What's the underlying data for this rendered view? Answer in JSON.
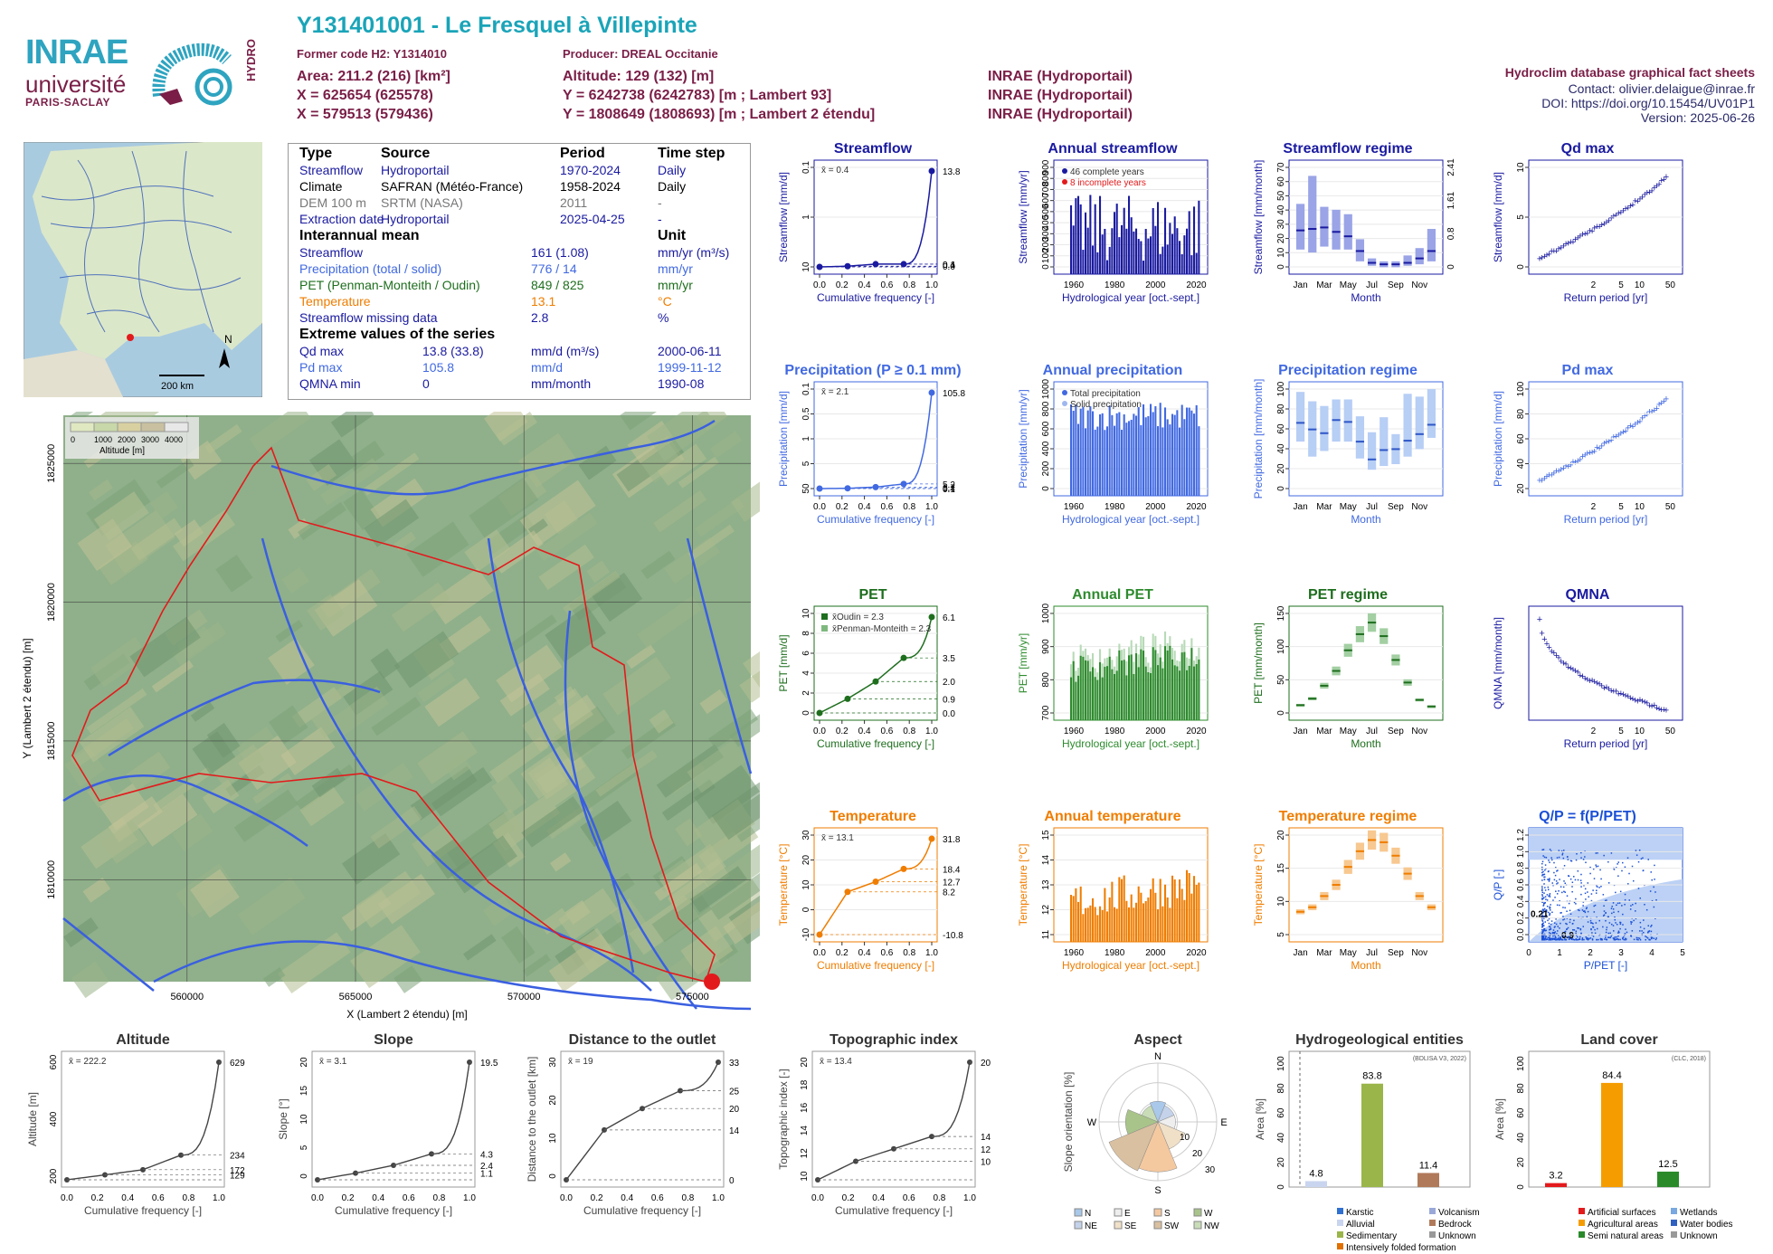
{
  "header": {
    "title": "Y131401001 - Le Fresquel à Villepinte",
    "former_code": "Former code H2: Y1314010",
    "producer": "Producer: DREAL Occitanie",
    "area": "Area: 211.2 (216) [km²]",
    "x_l93": "X = 625654 (625578)",
    "x_l2": "X = 579513 (579436)",
    "altitude": "Altitude: 129 (132) [m]",
    "y_l93": "Y = 6242738 (6242783) [m ; Lambert 93]",
    "y_l2": "Y = 1808649 (1808693) [m ; Lambert 2 étendu]",
    "src1": "INRAE (Hydroportail)",
    "src2": "INRAE (Hydroportail)",
    "src3": "INRAE (Hydroportail)",
    "db_title": "Hydroclim database graphical fact sheets",
    "contact": "Contact: olivier.delaigue@inrae.fr",
    "doi": "DOI: https://doi.org/10.15454/UV01P1",
    "version": "Version: 2025-06-26"
  },
  "logos": {
    "inrae": "INRAE",
    "universite": "université",
    "paris_saclay": "PARIS-SACLAY",
    "hydro": "HYDRO"
  },
  "minimap": {
    "north": "N",
    "scale": "200 km"
  },
  "table": {
    "head": [
      "Type",
      "Source",
      "Period",
      "Time step"
    ],
    "rows": [
      {
        "type": "Streamflow",
        "source": "Hydroportail",
        "period": "1970-2024",
        "step": "Daily",
        "color": "#1a1aa0"
      },
      {
        "type": "Climate",
        "source": "SAFRAN (Météo-France)",
        "period": "1958-2024",
        "step": "Daily",
        "color": "#000000"
      },
      {
        "type": "DEM 100 m",
        "source": "SRTM (NASA)",
        "period": "2011",
        "step": "-",
        "color": "#777777"
      },
      {
        "type": "Extraction date",
        "source": "Hydroportail",
        "period": "2025-04-25",
        "step": "-",
        "color": "#1a1aa0"
      }
    ],
    "interannual_title": "Interannual mean",
    "unit_title": "Unit",
    "means": [
      {
        "name": "Streamflow",
        "value": "161 (1.08)",
        "unit": "mm/yr (m³/s)",
        "color": "#1a1aa0"
      },
      {
        "name": "Precipitation (total / solid)",
        "value": "776 / 14",
        "unit": "mm/yr",
        "color": "#4169e1"
      },
      {
        "name": "PET (Penman-Monteith / Oudin)",
        "value": "849 / 825",
        "unit": "mm/yr",
        "color": "#1e6e1e"
      },
      {
        "name": "Temperature",
        "value": "13.1",
        "unit": "°C",
        "color": "#ef7d00"
      },
      {
        "name": "Streamflow missing data",
        "value": "2.8",
        "unit": "%",
        "color": "#1a1aa0"
      }
    ],
    "extreme_title": "Extreme values of the series",
    "extremes": [
      {
        "name": "Qd max",
        "value": "13.8 (33.8)",
        "unit": "mm/d (m³/s)",
        "date": "2000-06-11",
        "color": "#1a1aa0"
      },
      {
        "name": "Pd max",
        "value": "105.8",
        "unit": "mm/d",
        "date": "1999-11-12",
        "color": "#4169e1"
      },
      {
        "name": "QMNA min",
        "value": "0",
        "unit": "mm/month",
        "date": "1990-08",
        "color": "#1a1aa0"
      }
    ]
  },
  "map": {
    "legend_title": "Altitude [m]",
    "legend_ticks": [
      "0",
      "1000",
      "2000",
      "3000",
      "4000"
    ],
    "xlabel": "X (Lambert 2 étendu) [m]",
    "ylabel": "Y (Lambert 2 étendu) [m]",
    "xticks": [
      "560000",
      "565000",
      "570000",
      "575000",
      "580000"
    ],
    "yticks": [
      "1825000",
      "1820000",
      "1815000",
      "1810000"
    ]
  },
  "chart_data": [
    {
      "id": "streamflow",
      "type": "line",
      "title": "Streamflow",
      "xlabel": "Cumulative frequency [-]",
      "ylabel": "Streamflow [mm/d]",
      "color": "#1a1aa0",
      "mean_label": "x̄ = 0.4",
      "right_ticks": [
        "13.8",
        "0.4",
        "0.1",
        "0.0"
      ],
      "left_ticks": [
        "10",
        "1",
        "0.1"
      ],
      "x": [
        0,
        0.25,
        0.5,
        0.75,
        1.0
      ],
      "y": [
        0.0,
        0.1,
        0.4,
        0.4,
        13.8
      ]
    },
    {
      "id": "annual_streamflow",
      "type": "bar",
      "title": "Annual streamflow",
      "xlabel": "Hydrological year [oct.-sept.]",
      "ylabel": "Streamflow [mm/yr]",
      "color": "#1a1aa0",
      "legend": [
        "46 complete years",
        "8 incomplete years"
      ],
      "xticks": [
        "1960",
        "1980",
        "2000",
        "2020"
      ],
      "yticks": [
        "0",
        "100",
        "200",
        "300",
        "400",
        "500",
        "600",
        "700",
        "800",
        "900"
      ],
      "ylim": [
        0,
        950
      ]
    },
    {
      "id": "streamflow_regime",
      "type": "box",
      "title": "Streamflow regime",
      "xlabel": "Month",
      "ylabel": "Streamflow [mm/month]",
      "color": "#1a1aa0",
      "categories": [
        "Jan",
        "Feb",
        "Mar",
        "Apr",
        "May",
        "Jun",
        "Jul",
        "Aug",
        "Sep",
        "Oct",
        "Nov",
        "Dec"
      ],
      "xticks": [
        "Jan",
        "Mar",
        "May",
        "Jul",
        "Sep",
        "Nov"
      ],
      "yticks": [
        "0",
        "10",
        "20",
        "30",
        "40",
        "50",
        "60",
        "70"
      ],
      "right_ticks": [
        "2.41",
        "1.61",
        "0.8",
        "0"
      ],
      "median": [
        26,
        27,
        28,
        25,
        22,
        12,
        4,
        3,
        3,
        4,
        7,
        12
      ],
      "q1": [
        13,
        11,
        15,
        13,
        13,
        5,
        2,
        1,
        1,
        2,
        3,
        5
      ],
      "q3": [
        44,
        63,
        42,
        40,
        37,
        20,
        7,
        5,
        5,
        9,
        14,
        27
      ]
    },
    {
      "id": "qd_max",
      "type": "scatter",
      "title": "Qd max",
      "xlabel": "Return period [yr]",
      "ylabel": "Streamflow [mm/d]",
      "color": "#1a1aa0",
      "xticks": [
        "2",
        "5",
        "10",
        "50"
      ],
      "yticks": [
        "0",
        "5",
        "10"
      ]
    },
    {
      "id": "precipitation",
      "type": "line",
      "title": "Precipitation (P ≥ 0.1 mm)",
      "xlabel": "Cumulative frequency [-]",
      "ylabel": "Precipitation [mm/d]",
      "color": "#4169e1",
      "mean_label": "x̄ = 2.1",
      "right_ticks": [
        "105.8",
        "5.2",
        "1.7",
        "0.4",
        "0.1"
      ],
      "left_ticks": [
        "50",
        "5",
        "1",
        "0.5",
        "0.1"
      ],
      "x": [
        0,
        0.25,
        0.5,
        0.75,
        1.0
      ],
      "y": [
        0.1,
        0.4,
        1.7,
        5.2,
        105.8
      ]
    },
    {
      "id": "annual_precipitation",
      "type": "bar",
      "title": "Annual precipitation",
      "xlabel": "Hydrological year [oct.-sept.]",
      "ylabel": "Precipitation [mm/yr]",
      "color": "#4169e1",
      "legend": [
        "Total precipitation",
        "Solid precipitation"
      ],
      "xticks": [
        "1960",
        "1980",
        "2000",
        "2020"
      ],
      "yticks": [
        "0",
        "200",
        "400",
        "600",
        "800",
        "1000"
      ],
      "ylim": [
        0,
        1050
      ]
    },
    {
      "id": "precipitation_regime",
      "type": "box",
      "title": "Precipitation regime",
      "xlabel": "Month",
      "ylabel": "Precipitation [mm/month]",
      "color": "#4169e1",
      "categories": [
        "Jan",
        "Feb",
        "Mar",
        "Apr",
        "May",
        "Jun",
        "Jul",
        "Aug",
        "Sep",
        "Oct",
        "Nov",
        "Dec"
      ],
      "xticks": [
        "Jan",
        "Mar",
        "May",
        "Jul",
        "Sep",
        "Nov"
      ],
      "yticks": [
        "0",
        "20",
        "40",
        "60",
        "80",
        "100"
      ],
      "median": [
        72,
        65,
        61,
        75,
        73,
        52,
        33,
        43,
        44,
        53,
        60,
        70
      ],
      "q1": [
        52,
        36,
        42,
        52,
        52,
        34,
        22,
        26,
        28,
        36,
        44,
        56
      ],
      "q3": [
        105,
        95,
        90,
        97,
        97,
        79,
        62,
        78,
        60,
        103,
        100,
        108
      ]
    },
    {
      "id": "pd_max",
      "type": "scatter",
      "title": "Pd max",
      "xlabel": "Return period [yr]",
      "ylabel": "Precipitation [mm/d]",
      "color": "#4169e1",
      "xticks": [
        "2",
        "5",
        "10",
        "50"
      ],
      "yticks": [
        "20",
        "40",
        "60",
        "80",
        "100"
      ]
    },
    {
      "id": "pet",
      "type": "line",
      "title": "PET",
      "xlabel": "Cumulative frequency [-]",
      "ylabel": "PET [mm/d]",
      "color": "#1e6e1e",
      "legend": [
        "x̄Oudin = 2.3",
        "x̄Penman-Monteith = 2.3"
      ],
      "right_ticks": [
        "6.1",
        "3.5",
        "2.0",
        "0.9",
        "0.0"
      ],
      "left_ticks": [
        "0",
        "2",
        "4",
        "6",
        "8",
        "10"
      ],
      "x": [
        0,
        0.25,
        0.5,
        0.75,
        1.0
      ],
      "y": [
        0.0,
        0.9,
        2.0,
        3.5,
        6.1
      ]
    },
    {
      "id": "annual_pet",
      "type": "bar",
      "title": "Annual PET",
      "xlabel": "Hydrological year [oct.-sept.]",
      "ylabel": "PET [mm/yr]",
      "color": "#2e8b2e",
      "xticks": [
        "1960",
        "1980",
        "2000",
        "2020"
      ],
      "yticks": [
        "700",
        "800",
        "900",
        "1000"
      ],
      "ylim": [
        650,
        1060
      ]
    },
    {
      "id": "pet_regime",
      "type": "box",
      "title": "PET regime",
      "xlabel": "Month",
      "ylabel": "PET [mm/month]",
      "color": "#1e6e1e",
      "categories": [
        "Jan",
        "Feb",
        "Mar",
        "Apr",
        "May",
        "Jun",
        "Jul",
        "Aug",
        "Sep",
        "Oct",
        "Nov",
        "Dec"
      ],
      "xticks": [
        "Jan",
        "Mar",
        "May",
        "Jul",
        "Sep",
        "Nov"
      ],
      "yticks": [
        "0",
        "50",
        "100",
        "150"
      ],
      "median": [
        15,
        25,
        45,
        68,
        100,
        125,
        143,
        122,
        85,
        50,
        23,
        13
      ]
    },
    {
      "id": "qmna",
      "type": "scatter",
      "title": "QMNA",
      "xlabel": "Return period [yr]",
      "ylabel": "QMNA [mm/month]",
      "color": "#1a1aa0",
      "xticks": [
        "2",
        "5",
        "10",
        "50"
      ]
    },
    {
      "id": "temperature",
      "type": "line",
      "title": "Temperature",
      "xlabel": "Cumulative frequency [-]",
      "ylabel": "Temperature [°C]",
      "color": "#ef7d00",
      "mean_label": "x̄ = 13.1",
      "right_ticks": [
        "31.8",
        "18.4",
        "12.7",
        "8.2",
        "-10.8"
      ],
      "left_ticks": [
        "-10",
        "0",
        "10",
        "20",
        "30"
      ],
      "x": [
        0,
        0.25,
        0.5,
        0.75,
        1.0
      ],
      "y": [
        -10.8,
        8.2,
        12.7,
        18.4,
        31.8
      ]
    },
    {
      "id": "annual_temperature",
      "type": "bar",
      "title": "Annual temperature",
      "xlabel": "Hydrological year [oct.-sept.]",
      "ylabel": "Temperature [°C]",
      "color": "#ef7d00",
      "xticks": [
        "1960",
        "1980",
        "2000",
        "2020"
      ],
      "yticks": [
        "11",
        "12",
        "13",
        "14",
        "15"
      ],
      "ylim": [
        11,
        15.3
      ]
    },
    {
      "id": "temperature_regime",
      "type": "box",
      "title": "Temperature regime",
      "xlabel": "Month",
      "ylabel": "Temperature [°C]",
      "color": "#ef7d00",
      "categories": [
        "Jan",
        "Feb",
        "Mar",
        "Apr",
        "May",
        "Jun",
        "Jul",
        "Aug",
        "Sep",
        "Oct",
        "Nov",
        "Dec"
      ],
      "xticks": [
        "Jan",
        "Mar",
        "May",
        "Jul",
        "Sep",
        "Nov"
      ],
      "yticks": [
        "5",
        "10",
        "15",
        "20"
      ],
      "median": [
        5.5,
        6.5,
        9,
        11.5,
        15.5,
        19,
        21.5,
        21,
        18,
        14,
        9,
        6.5
      ]
    },
    {
      "id": "qp_ppet",
      "type": "scatter",
      "title": "Q/P = f(P/PET)",
      "xlabel": "P/PET [-]",
      "ylabel": "Q/P [-]",
      "color": "#1a4fd6",
      "annotations": [
        "0.21",
        "0.9"
      ],
      "xticks": [
        "0",
        "1",
        "2",
        "3",
        "4",
        "5"
      ],
      "yticks": [
        "0.0",
        "0.2",
        "0.4",
        "0.6",
        "0.8",
        "1.0",
        "1.2"
      ]
    },
    {
      "id": "altitude",
      "type": "line",
      "title": "Altitude",
      "xlabel": "Cumulative frequency [-]",
      "ylabel": "Altitude [m]",
      "color": "#444444",
      "mean_label": "x̄ = 222.2",
      "right_ticks": [
        "629",
        "234",
        "172",
        "129"
      ],
      "left_ticks": [
        "200",
        "400",
        "600"
      ],
      "x": [
        0,
        0.25,
        0.5,
        0.75,
        1.0
      ],
      "y": [
        129,
        150,
        172,
        234,
        629
      ]
    },
    {
      "id": "slope",
      "type": "line",
      "title": "Slope",
      "xlabel": "Cumulative frequency [-]",
      "ylabel": "Slope [°]",
      "color": "#444444",
      "mean_label": "x̄ = 3.1",
      "right_ticks": [
        "19.5",
        "4.3",
        "2.4",
        "1.1"
      ],
      "left_ticks": [
        "0",
        "5",
        "10",
        "15",
        "20"
      ],
      "x": [
        0,
        0.25,
        0.5,
        0.75,
        1.0
      ],
      "y": [
        0,
        1.1,
        2.4,
        4.3,
        19.5
      ]
    },
    {
      "id": "distance",
      "type": "line",
      "title": "Distance to the outlet",
      "xlabel": "Cumulative frequency [-]",
      "ylabel": "Distance to the outlet [km]",
      "color": "#444444",
      "mean_label": "x̄ = 19",
      "right_ticks": [
        "33",
        "25",
        "20",
        "14",
        "0"
      ],
      "left_ticks": [
        "0",
        "10",
        "20",
        "30"
      ],
      "x": [
        0,
        0.25,
        0.5,
        0.75,
        1.0
      ],
      "y": [
        0,
        14,
        20,
        25,
        33
      ]
    },
    {
      "id": "topographic",
      "type": "line",
      "title": "Topographic index",
      "xlabel": "Cumulative frequency [-]",
      "ylabel": "Topographic index [-]",
      "color": "#444444",
      "mean_label": "x̄ = 13.4",
      "right_ticks": [
        "20",
        "14",
        "12",
        "10"
      ],
      "left_ticks": [
        "10",
        "12",
        "14",
        "16",
        "18",
        "20"
      ],
      "x": [
        0,
        0.25,
        0.5,
        0.75,
        1.0
      ],
      "y": [
        10.5,
        12,
        13,
        14,
        20
      ]
    },
    {
      "id": "aspect",
      "type": "pie",
      "title": "Aspect",
      "ylabel": "Slope orientation [%]",
      "directions": [
        "N",
        "E",
        "S",
        "W"
      ],
      "rings": [
        "10",
        "20",
        "30"
      ],
      "legend": [
        "N",
        "E",
        "S",
        "W",
        "NE",
        "SE",
        "SW",
        "NW"
      ],
      "legend_colors": [
        "#a9c8ea",
        "#eeeeee",
        "#f5c9a0",
        "#a9c48a",
        "#c4d2ea",
        "#f0e0c8",
        "#d9c0a0",
        "#c8dcb8"
      ]
    },
    {
      "id": "hydrogeology",
      "type": "bar",
      "title": "Hydrogeological entities",
      "ylabel": "Area [%]",
      "source_note": "(BDLISA V3, 2022)",
      "values": [
        4.8,
        83.8,
        11.4
      ],
      "value_labels": [
        "4.8",
        "83.8",
        "11.4"
      ],
      "colors": [
        "#c9d4ef",
        "#9ab54a",
        "#b07a5a"
      ],
      "yticks": [
        "0",
        "20",
        "40",
        "60",
        "80",
        "100"
      ],
      "legend": [
        "Karstic",
        "Volcanism",
        "Alluvial",
        "Bedrock",
        "Sedimentary",
        "Unknown",
        "Intensively folded formation"
      ],
      "legend_colors": [
        "#3070d0",
        "#9aa8d8",
        "#c9d4ef",
        "#b07a5a",
        "#9ab54a",
        "#999999",
        "#e07000"
      ]
    },
    {
      "id": "landcover",
      "type": "bar",
      "title": "Land cover",
      "ylabel": "Area [%]",
      "source_note": "(CLC, 2018)",
      "values": [
        3.2,
        84.4,
        12.5
      ],
      "value_labels": [
        "3.2",
        "84.4",
        "12.5"
      ],
      "colors": [
        "#e31a1c",
        "#f59d00",
        "#2a8a2a"
      ],
      "yticks": [
        "0",
        "20",
        "40",
        "60",
        "80",
        "100"
      ],
      "legend": [
        "Artificial surfaces",
        "Wetlands",
        "Agricultural areas",
        "Water bodies",
        "Semi natural areas",
        "Unknown"
      ],
      "legend_colors": [
        "#e31a1c",
        "#7aa8e0",
        "#f59d00",
        "#3060c0",
        "#2a8a2a",
        "#999999"
      ]
    }
  ]
}
